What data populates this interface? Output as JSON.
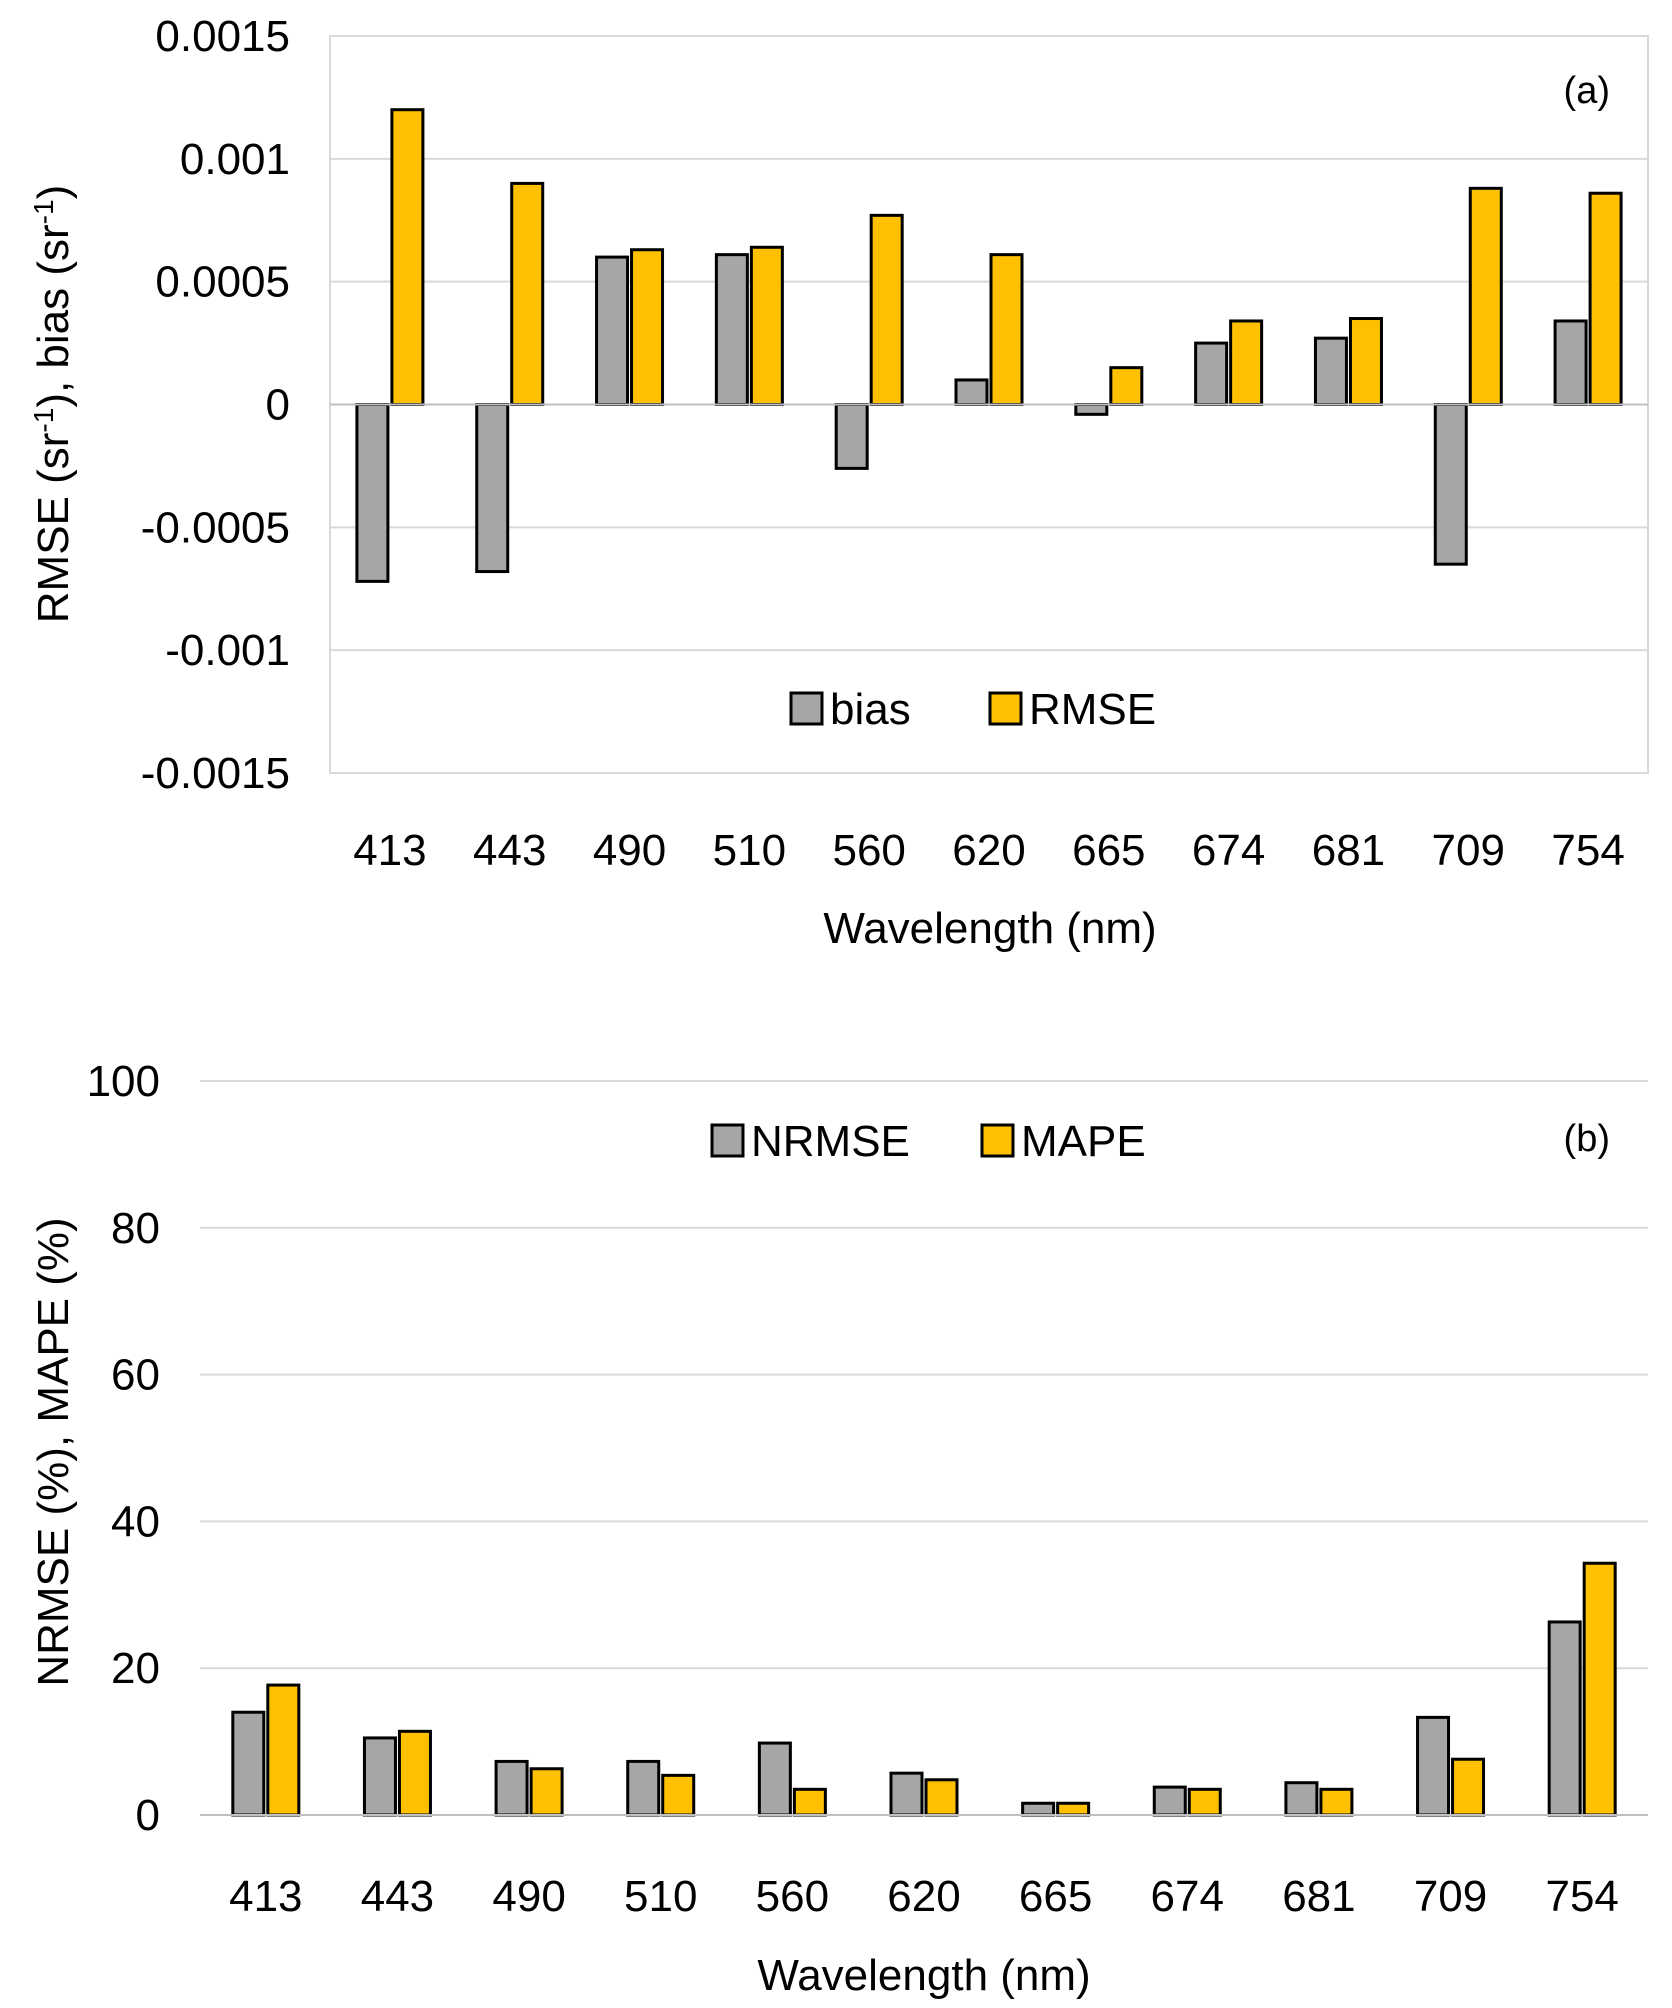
{
  "colors": {
    "series1": "#a6a6a6",
    "series2": "#ffc000"
  },
  "chart_data": [
    {
      "type": "bar",
      "panel_label": "(a)",
      "categories": [
        "413",
        "443",
        "490",
        "510",
        "560",
        "620",
        "665",
        "674",
        "681",
        "709",
        "754"
      ],
      "series": [
        {
          "name": "bias",
          "values": [
            -0.00072,
            -0.00068,
            0.0006,
            0.00061,
            -0.00026,
            0.0001,
            -4e-05,
            0.00025,
            0.00027,
            -0.00065,
            0.00034
          ]
        },
        {
          "name": "RMSE",
          "values": [
            0.0012,
            0.0009,
            0.00063,
            0.00064,
            0.00077,
            0.00061,
            0.00015,
            0.00034,
            0.00035,
            0.00088,
            0.00086
          ]
        }
      ],
      "yticks": [
        "0.0015",
        "0.001",
        "0.0005",
        "0",
        "-0.0005",
        "-0.001",
        "-0.0015"
      ],
      "ytick_values": [
        0.0015,
        0.001,
        0.0005,
        0,
        -0.0005,
        -0.001,
        -0.0015
      ],
      "ylim": [
        -0.0015,
        0.0015
      ],
      "xlabel": "Wavelength (nm)",
      "ylabel": {
        "prefix": "RMSE (sr",
        "sup1": "-1",
        "middle": "), bias (sr",
        "sup2": "-1",
        "suffix": ")"
      },
      "legend": [
        "bias",
        "RMSE"
      ],
      "legend_position": "bottom-center",
      "grid": true
    },
    {
      "type": "bar",
      "panel_label": "(b)",
      "categories": [
        "413",
        "443",
        "490",
        "510",
        "560",
        "620",
        "665",
        "674",
        "681",
        "709",
        "754"
      ],
      "series": [
        {
          "name": "NRMSE",
          "values": [
            14,
            10.5,
            7.3,
            7.3,
            9.8,
            5.7,
            1.6,
            3.8,
            4.4,
            13.3,
            26.3
          ]
        },
        {
          "name": "MAPE",
          "values": [
            17.7,
            11.4,
            6.3,
            5.4,
            3.5,
            4.8,
            1.6,
            3.5,
            3.5,
            7.6,
            34.3
          ]
        }
      ],
      "yticks": [
        "100",
        "80",
        "60",
        "40",
        "20",
        "0"
      ],
      "ytick_values": [
        100,
        80,
        60,
        40,
        20,
        0
      ],
      "ylim": [
        0,
        100
      ],
      "xlabel": "Wavelength (nm)",
      "ylabel": "NRMSE (%), MAPE (%)",
      "legend": [
        "NRMSE",
        "MAPE"
      ],
      "legend_position": "top-center",
      "grid": true
    }
  ]
}
